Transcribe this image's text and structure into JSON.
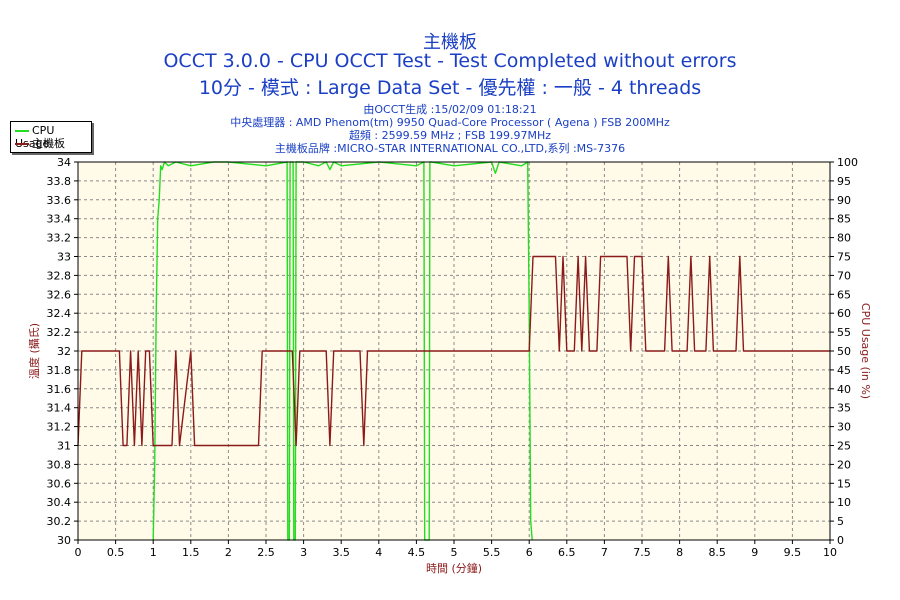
{
  "header": {
    "title": "主機板",
    "subtitle1": "OCCT 3.0.0 - CPU OCCT Test - Test Completed without errors",
    "subtitle2": "10分 - 模式 : Large Data Set - 優先權 : 一般 - 4 threads",
    "info_lines": [
      "由OCCT生成 :15/02/09 01:18:21",
      "中央處理器 : AMD Phenom(tm) 9950 Quad-Core Processor ( Agena ) FSB 200MHz",
      "超頻 : 2599.59 MHz ; FSB 199.97MHz",
      "主機板品牌 :MICRO-STAR INTERNATIONAL CO.,LTD,系列 :MS-7376"
    ]
  },
  "legend": {
    "items": [
      {
        "label": "CPU Usage",
        "color": "#22dd22"
      },
      {
        "label": "主機板",
        "color": "#8b1a1a"
      }
    ]
  },
  "chart_data": {
    "type": "line",
    "xlabel": "時間 (分鐘)",
    "ylabel_left": "溫度 (攝氏)",
    "ylabel_right": "CPU Usage (in %)",
    "xlim": [
      0,
      10
    ],
    "ylim_left": [
      30,
      34
    ],
    "ylim_right": [
      0,
      100
    ],
    "x_ticks": [
      "0",
      "0.5",
      "1",
      "1.5",
      "2",
      "2.5",
      "3",
      "3.5",
      "4",
      "4.5",
      "5",
      "5.5",
      "6",
      "6.5",
      "7",
      "7.5",
      "8",
      "8.5",
      "9",
      "9.5",
      "10"
    ],
    "y_left_ticks": [
      "30",
      "30.2",
      "30.4",
      "30.6",
      "30.8",
      "31",
      "31.2",
      "31.4",
      "31.6",
      "31.8",
      "32",
      "32.2",
      "32.4",
      "32.6",
      "32.8",
      "33",
      "33.2",
      "33.4",
      "33.6",
      "33.8",
      "34"
    ],
    "y_right_ticks": [
      "0",
      "5",
      "10",
      "15",
      "20",
      "25",
      "30",
      "35",
      "40",
      "45",
      "50",
      "55",
      "60",
      "65",
      "70",
      "75",
      "80",
      "85",
      "90",
      "95",
      "100"
    ],
    "grid": true,
    "background": "#fffbe8",
    "series": [
      {
        "name": "CPU Usage",
        "axis": "right",
        "color": "#22dd22",
        "x": [
          1.0,
          1.02,
          1.04,
          1.06,
          1.08,
          1.1,
          1.12,
          1.15,
          1.2,
          1.3,
          1.5,
          1.8,
          2.0,
          2.5,
          2.78,
          2.79,
          2.8,
          2.81,
          2.82,
          2.86,
          2.87,
          2.88,
          2.89,
          2.9,
          3.0,
          3.2,
          3.3,
          3.35,
          3.4,
          3.5,
          4.0,
          4.5,
          4.6,
          4.61,
          4.62,
          4.65,
          4.66,
          4.67,
          4.68,
          4.7,
          5.0,
          5.5,
          5.55,
          5.6,
          5.9,
          5.98,
          6.0,
          6.02,
          6.04
        ],
        "values": [
          0,
          20,
          60,
          85,
          90,
          99,
          98,
          100,
          99,
          100,
          99,
          100,
          100,
          99,
          100,
          0,
          0,
          0,
          100,
          100,
          0,
          0,
          0,
          100,
          100,
          99,
          100,
          98,
          100,
          99,
          100,
          99,
          100,
          0,
          0,
          0,
          0,
          0,
          100,
          100,
          99,
          100,
          97,
          100,
          99,
          100,
          60,
          5,
          0
        ]
      },
      {
        "name": "主機板",
        "axis": "left",
        "color": "#8b1a1a",
        "x": [
          0.0,
          0.05,
          0.1,
          0.55,
          0.6,
          0.65,
          0.7,
          0.75,
          0.8,
          0.85,
          0.9,
          0.95,
          1.0,
          1.25,
          1.3,
          1.35,
          1.5,
          1.55,
          1.6,
          2.4,
          2.45,
          2.85,
          2.9,
          2.95,
          3.0,
          3.3,
          3.35,
          3.4,
          3.75,
          3.8,
          3.85,
          6.0,
          6.05,
          6.35,
          6.4,
          6.45,
          6.5,
          6.6,
          6.65,
          6.7,
          6.75,
          6.8,
          6.9,
          6.95,
          7.0,
          7.3,
          7.35,
          7.4,
          7.5,
          7.55,
          7.6,
          7.8,
          7.85,
          7.9,
          8.1,
          8.15,
          8.2,
          8.35,
          8.4,
          8.45,
          8.75,
          8.8,
          8.85,
          10.0
        ],
        "values": [
          31,
          32,
          32,
          32,
          31,
          31,
          32,
          31,
          32,
          31,
          32,
          32,
          31,
          31,
          32,
          31,
          32,
          31,
          31,
          31,
          32,
          32,
          31,
          32,
          32,
          32,
          31,
          32,
          32,
          31,
          32,
          32,
          33,
          33,
          32,
          33,
          32,
          32,
          33,
          32,
          33,
          32,
          32,
          33,
          33,
          33,
          32,
          33,
          33,
          32,
          32,
          32,
          33,
          32,
          32,
          33,
          32,
          32,
          33,
          32,
          32,
          33,
          32,
          32
        ]
      }
    ]
  }
}
